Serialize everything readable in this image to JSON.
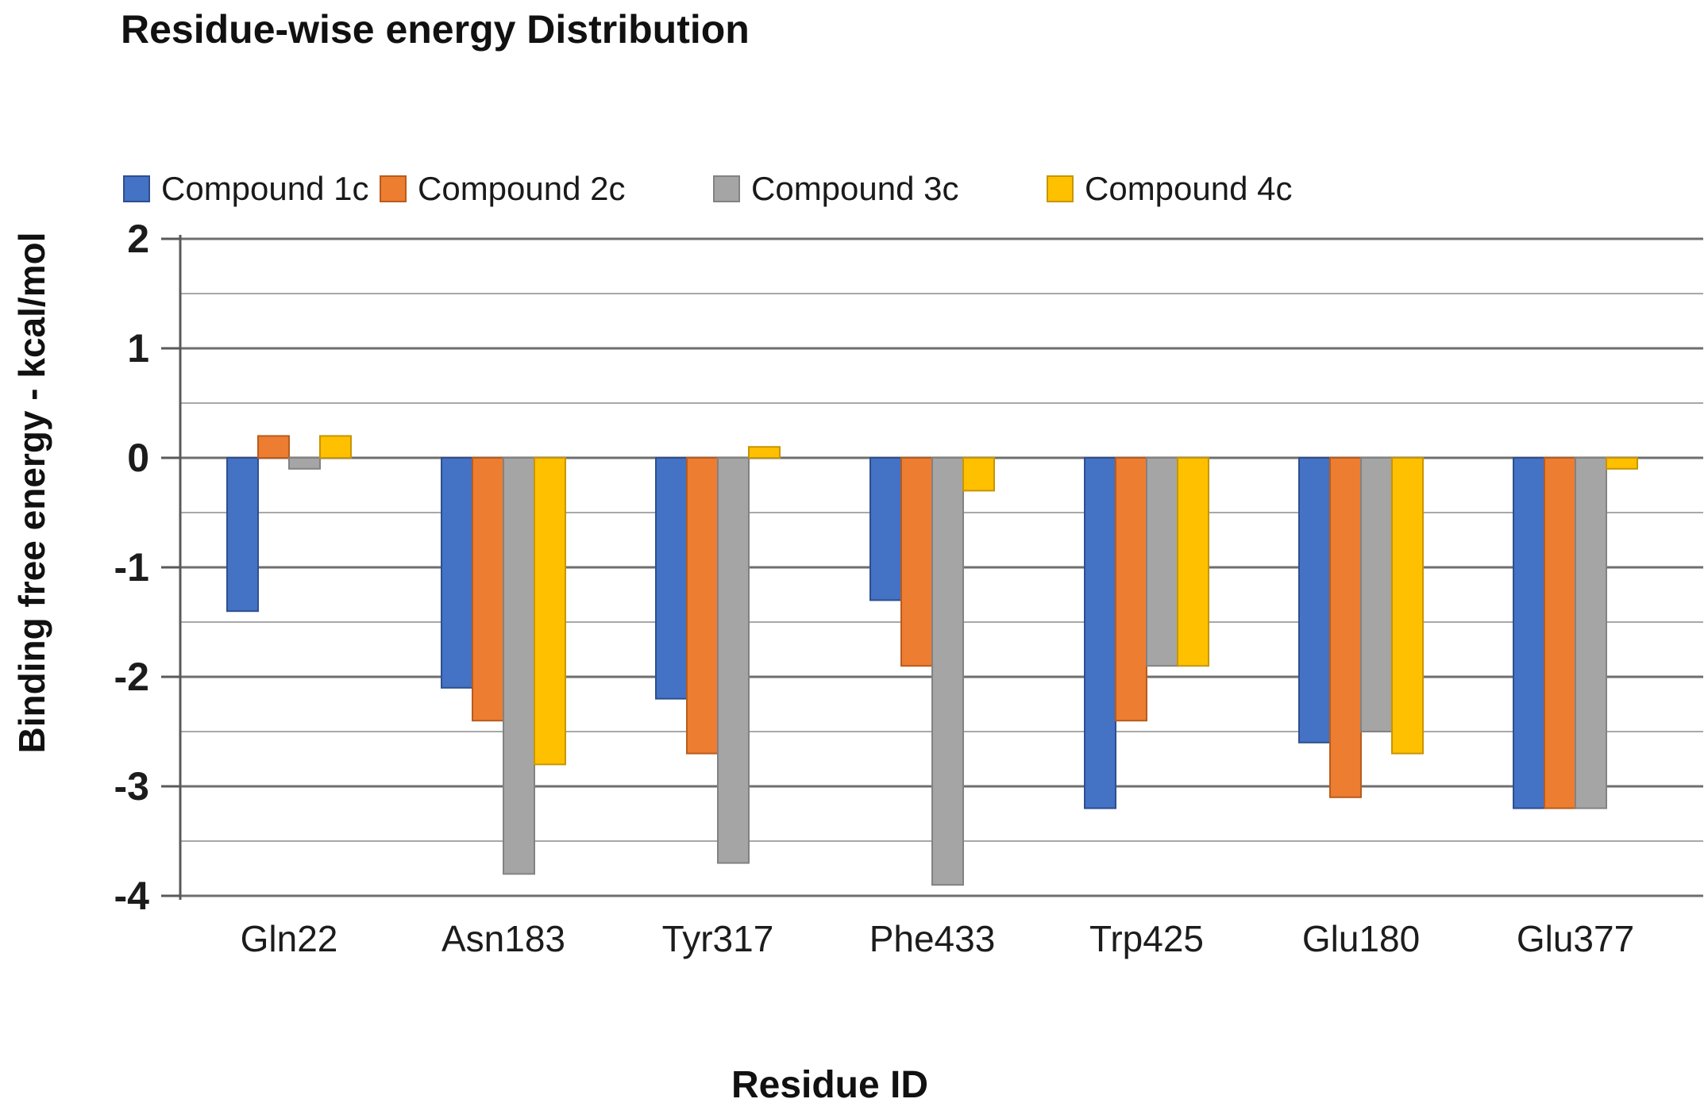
{
  "title": "Residue-wise energy Distribution",
  "chart_data": {
    "type": "bar",
    "title": "Residue-wise energy Distribution",
    "categories": [
      "Gln22",
      "Asn183",
      "Tyr317",
      "Phe433",
      "Trp425",
      "Glu180",
      "Glu377"
    ],
    "series": [
      {
        "name": "Compound 1c",
        "color": "#4472c4",
        "border": "#2e4f8f",
        "values": [
          -1.4,
          -2.1,
          -2.2,
          -1.3,
          -3.2,
          -2.6,
          -3.2
        ]
      },
      {
        "name": "Compound 2c",
        "color": "#ed7d31",
        "border": "#b85c1d",
        "values": [
          0.2,
          -2.4,
          -2.7,
          -1.9,
          -2.4,
          -3.1,
          -3.2
        ]
      },
      {
        "name": "Compound 3c",
        "color": "#a5a5a5",
        "border": "#828282",
        "values": [
          -0.1,
          -3.8,
          -3.7,
          -3.9,
          -1.9,
          -2.5,
          -3.2
        ]
      },
      {
        "name": "Compound 4c",
        "color": "#ffc000",
        "border": "#c79500",
        "values": [
          0.2,
          -2.8,
          0.1,
          -0.3,
          -1.9,
          -2.7,
          -0.1
        ]
      }
    ],
    "xlabel": "Residue ID",
    "ylabel": "Binding free energy - kcal/mol",
    "ylim": [
      -4,
      2
    ],
    "yticks": [
      2,
      1,
      0,
      -1,
      -2,
      -3,
      -4
    ],
    "minor_grid_step": 0.5,
    "grid": true,
    "legend_position": "top",
    "grid_major_color": "#6e6e6e",
    "grid_minor_color": "#a8a8a8",
    "axis_color": "#595959"
  }
}
